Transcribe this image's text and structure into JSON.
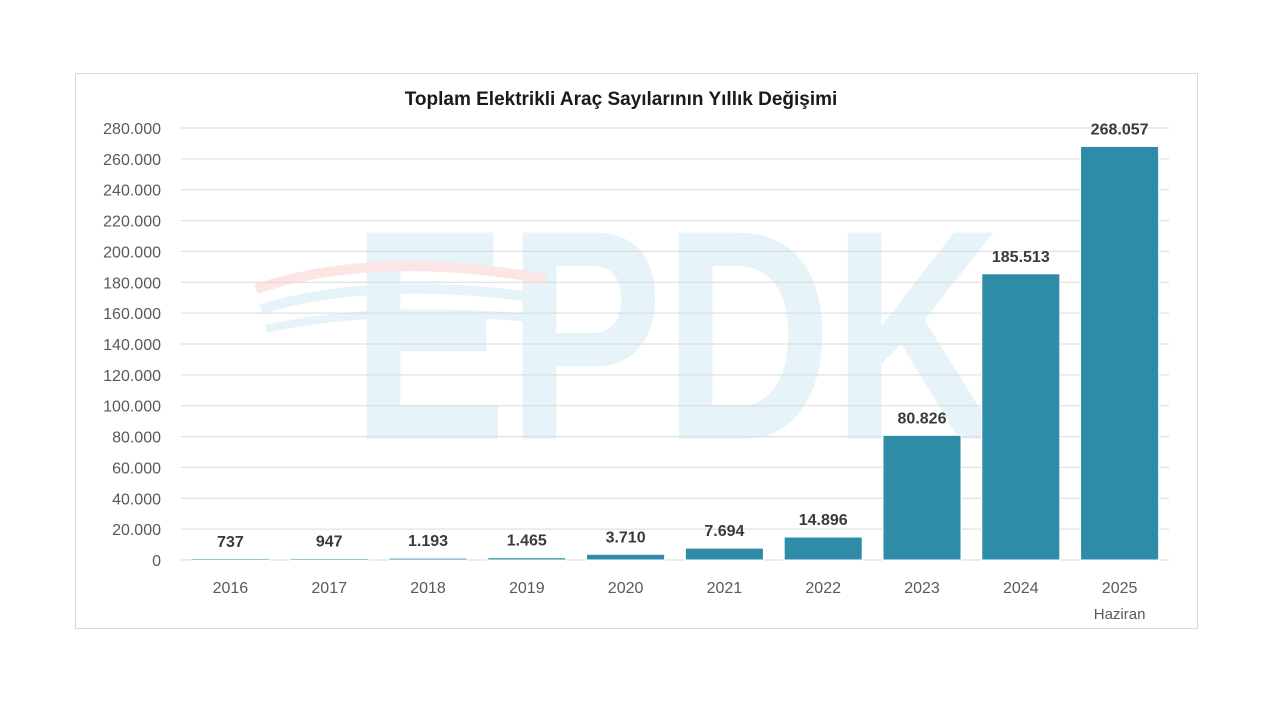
{
  "chart_data": {
    "type": "bar",
    "title": "Toplam Elektrikli Araç Sayılarının Yıllık Değişimi",
    "categories": [
      "2016",
      "2017",
      "2018",
      "2019",
      "2020",
      "2021",
      "2022",
      "2023",
      "2024",
      "2025"
    ],
    "category_sublabels": [
      "",
      "",
      "",
      "",
      "",
      "",
      "",
      "",
      "",
      "Haziran"
    ],
    "values": [
      737,
      947,
      1193,
      1465,
      3710,
      7694,
      14896,
      80826,
      185513,
      268057
    ],
    "data_labels": [
      "737",
      "947",
      "1.193",
      "1.465",
      "3.710",
      "7.694",
      "14.896",
      "80.826",
      "185.513",
      "268.057"
    ],
    "ylim": [
      0,
      280000
    ],
    "ytick_step": 20000,
    "ytick_labels": [
      "0",
      "20.000",
      "40.000",
      "60.000",
      "80.000",
      "100.000",
      "120.000",
      "140.000",
      "160.000",
      "180.000",
      "200.000",
      "220.000",
      "240.000",
      "260.000",
      "280.000"
    ],
    "xlabel": "",
    "ylabel": "",
    "grid": true,
    "legend": "none",
    "bar_color": "#2e8ca8",
    "watermark": "EPDK"
  }
}
